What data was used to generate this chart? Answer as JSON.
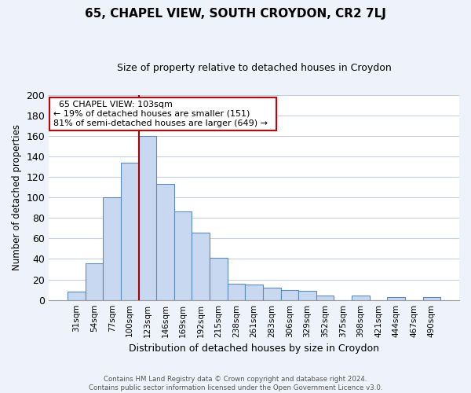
{
  "title": "65, CHAPEL VIEW, SOUTH CROYDON, CR2 7LJ",
  "subtitle": "Size of property relative to detached houses in Croydon",
  "xlabel": "Distribution of detached houses by size in Croydon",
  "ylabel": "Number of detached properties",
  "bar_labels": [
    "31sqm",
    "54sqm",
    "77sqm",
    "100sqm",
    "123sqm",
    "146sqm",
    "169sqm",
    "192sqm",
    "215sqm",
    "238sqm",
    "261sqm",
    "283sqm",
    "306sqm",
    "329sqm",
    "352sqm",
    "375sqm",
    "398sqm",
    "421sqm",
    "444sqm",
    "467sqm",
    "490sqm"
  ],
  "bar_values": [
    8,
    36,
    100,
    134,
    160,
    113,
    86,
    66,
    41,
    16,
    15,
    12,
    10,
    9,
    4,
    0,
    4,
    0,
    3,
    0,
    3
  ],
  "bar_color": "#c8d8f0",
  "bar_edge_color": "#5b8db8",
  "vline_x_index": 3.5,
  "vline_color": "#aa0000",
  "annotation_title": "65 CHAPEL VIEW: 103sqm",
  "annotation_line1": "← 19% of detached houses are smaller (151)",
  "annotation_line2": "81% of semi-detached houses are larger (649) →",
  "footer_line1": "Contains HM Land Registry data © Crown copyright and database right 2024.",
  "footer_line2": "Contains public sector information licensed under the Open Government Licence v3.0.",
  "ylim": [
    0,
    200
  ],
  "yticks": [
    0,
    20,
    40,
    60,
    80,
    100,
    120,
    140,
    160,
    180,
    200
  ],
  "bg_color": "#eef2fa",
  "plot_bg_color": "#ffffff",
  "grid_color": "#c8d0e0",
  "annotation_box_edge": "#cc0000",
  "title_fontsize": 11,
  "subtitle_fontsize": 9
}
